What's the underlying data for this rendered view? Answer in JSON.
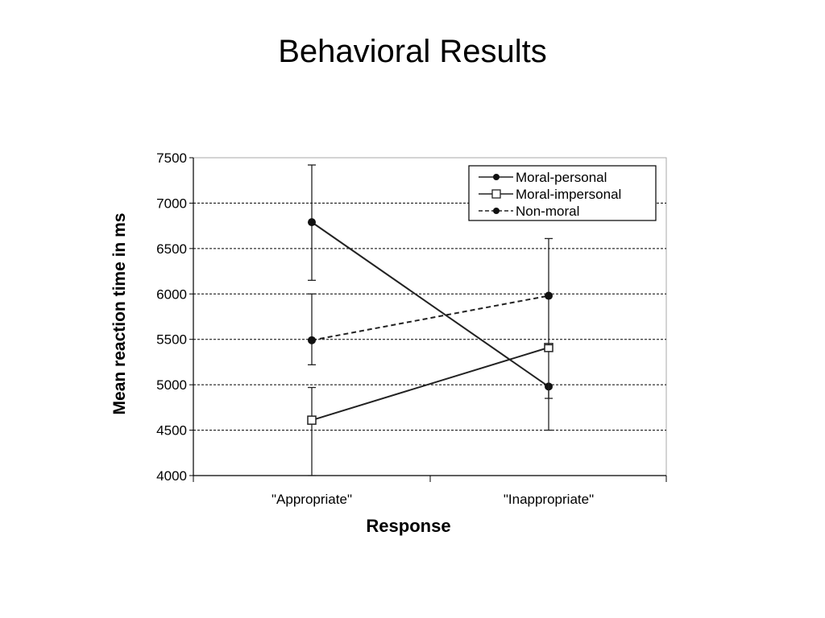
{
  "slide": {
    "title": "Behavioral Results"
  },
  "chart_data": {
    "type": "line",
    "xlabel": "Response",
    "ylabel": "Mean reaction time in ms",
    "categories": [
      "\"Appropriate\"",
      "\"Inappropriate\""
    ],
    "ylim": [
      4000,
      7500
    ],
    "yticks": [
      4000,
      4500,
      5000,
      5500,
      6000,
      6500,
      7000,
      7500
    ],
    "grid": true,
    "legend_position": "top-right",
    "series": [
      {
        "name": "Moral-personal",
        "marker": "filled-circle",
        "line_style": "solid",
        "values": [
          6790,
          4980
        ],
        "error": [
          [
            6150,
            7420
          ],
          [
            4850,
            5000
          ]
        ]
      },
      {
        "name": "Moral-impersonal",
        "marker": "open-square",
        "line_style": "solid",
        "values": [
          4610,
          5410
        ],
        "error": [
          [
            4000,
            4970
          ],
          [
            4500,
            5420
          ]
        ]
      },
      {
        "name": "Non-moral",
        "marker": "filled-circle",
        "line_style": "dashed",
        "values": [
          5490,
          5980
        ],
        "error": [
          [
            5220,
            6000
          ],
          [
            5440,
            6610
          ]
        ]
      }
    ]
  }
}
